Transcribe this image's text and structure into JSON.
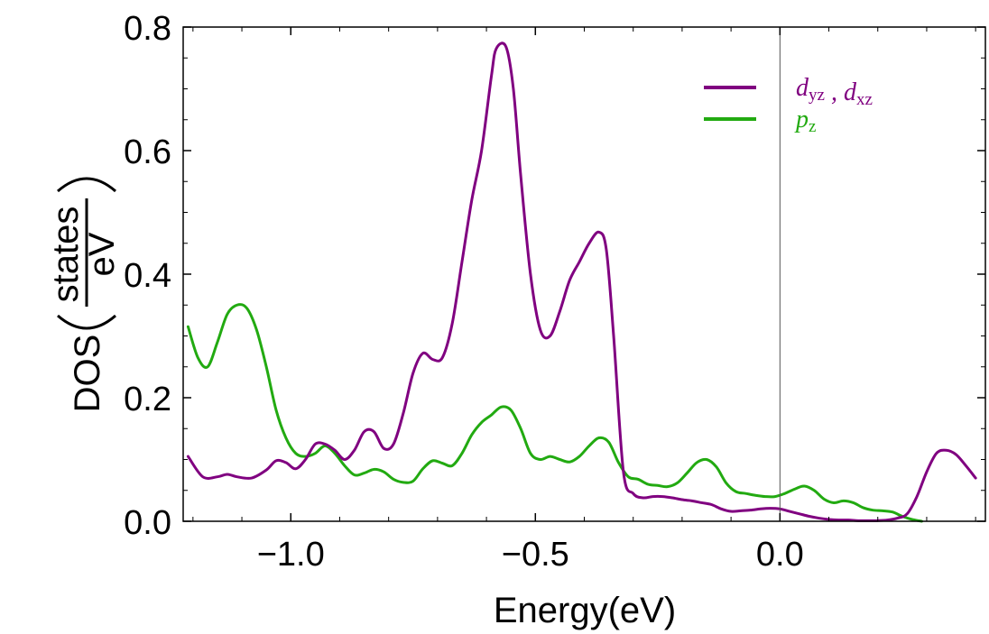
{
  "chart_data": {
    "type": "line",
    "title": "",
    "xlabel": "Energy(eV)",
    "ylabel": {
      "prefix": "DOS",
      "fraction_numerator": "states",
      "fraction_denominator": "eV"
    },
    "xlim": [
      -1.22,
      0.42
    ],
    "ylim": [
      0.0,
      0.8
    ],
    "x_ticks": [
      -1.0,
      -0.5,
      0.0
    ],
    "x_tick_labels": [
      "−1.0",
      "−0.5",
      "0.0"
    ],
    "y_ticks": [
      0.0,
      0.2,
      0.4,
      0.6,
      0.8
    ],
    "y_tick_labels": [
      "0.0",
      "0.2",
      "0.4",
      "0.6",
      "0.8"
    ],
    "reference_line_x": 0.0,
    "legend_position": "top-right",
    "series": [
      {
        "name": "d_yz , d_xz",
        "legend_parts": [
          {
            "main": "d",
            "sub": "yz"
          },
          {
            "main": " , ",
            "sub": ""
          },
          {
            "main": "d",
            "sub": "xz"
          }
        ],
        "color": "#800080",
        "x": [
          -1.21,
          -1.18,
          -1.15,
          -1.13,
          -1.11,
          -1.08,
          -1.05,
          -1.03,
          -1.01,
          -0.99,
          -0.97,
          -0.95,
          -0.93,
          -0.91,
          -0.89,
          -0.87,
          -0.85,
          -0.83,
          -0.81,
          -0.79,
          -0.77,
          -0.75,
          -0.73,
          -0.71,
          -0.69,
          -0.67,
          -0.65,
          -0.63,
          -0.61,
          -0.59,
          -0.58,
          -0.56,
          -0.545,
          -0.53,
          -0.51,
          -0.49,
          -0.47,
          -0.45,
          -0.43,
          -0.41,
          -0.39,
          -0.37,
          -0.355,
          -0.34,
          -0.32,
          -0.3,
          -0.28,
          -0.26,
          -0.24,
          -0.22,
          -0.2,
          -0.18,
          -0.16,
          -0.14,
          -0.12,
          -0.1,
          -0.08,
          -0.06,
          -0.04,
          -0.02,
          0.0,
          0.02,
          0.04,
          0.06,
          0.08,
          0.1,
          0.12,
          0.14,
          0.16,
          0.18,
          0.2,
          0.22,
          0.24,
          0.26,
          0.28,
          0.3,
          0.32,
          0.34,
          0.36,
          0.38,
          0.4
        ],
        "values": [
          0.105,
          0.072,
          0.072,
          0.076,
          0.072,
          0.07,
          0.083,
          0.098,
          0.095,
          0.085,
          0.1,
          0.125,
          0.125,
          0.115,
          0.1,
          0.115,
          0.145,
          0.145,
          0.118,
          0.125,
          0.175,
          0.24,
          0.272,
          0.262,
          0.265,
          0.32,
          0.42,
          0.52,
          0.6,
          0.72,
          0.765,
          0.768,
          0.7,
          0.56,
          0.4,
          0.31,
          0.3,
          0.34,
          0.39,
          0.42,
          0.45,
          0.468,
          0.44,
          0.3,
          0.08,
          0.045,
          0.038,
          0.04,
          0.04,
          0.038,
          0.035,
          0.033,
          0.03,
          0.027,
          0.02,
          0.016,
          0.017,
          0.018,
          0.02,
          0.021,
          0.02,
          0.016,
          0.012,
          0.008,
          0.005,
          0.003,
          0.002,
          0.002,
          0.001,
          0.001,
          0.001,
          0.002,
          0.005,
          0.012,
          0.04,
          0.08,
          0.11,
          0.115,
          0.108,
          0.09,
          0.07
        ]
      },
      {
        "name": "p_z",
        "legend_parts": [
          {
            "main": "p",
            "sub": "z"
          }
        ],
        "color": "#22aa11",
        "x": [
          -1.21,
          -1.19,
          -1.17,
          -1.15,
          -1.13,
          -1.11,
          -1.09,
          -1.07,
          -1.05,
          -1.03,
          -1.01,
          -0.99,
          -0.97,
          -0.95,
          -0.93,
          -0.91,
          -0.89,
          -0.87,
          -0.85,
          -0.83,
          -0.81,
          -0.79,
          -0.77,
          -0.75,
          -0.73,
          -0.71,
          -0.69,
          -0.67,
          -0.65,
          -0.63,
          -0.61,
          -0.59,
          -0.57,
          -0.55,
          -0.53,
          -0.51,
          -0.49,
          -0.47,
          -0.45,
          -0.43,
          -0.41,
          -0.39,
          -0.37,
          -0.35,
          -0.33,
          -0.31,
          -0.29,
          -0.27,
          -0.25,
          -0.23,
          -0.21,
          -0.19,
          -0.17,
          -0.15,
          -0.13,
          -0.11,
          -0.09,
          -0.07,
          -0.05,
          -0.03,
          -0.01,
          0.01,
          0.03,
          0.05,
          0.07,
          0.09,
          0.11,
          0.13,
          0.15,
          0.17,
          0.19,
          0.21,
          0.23,
          0.25,
          0.27,
          0.29
        ],
        "values": [
          0.315,
          0.265,
          0.25,
          0.29,
          0.335,
          0.35,
          0.345,
          0.31,
          0.25,
          0.18,
          0.135,
          0.11,
          0.105,
          0.11,
          0.122,
          0.11,
          0.09,
          0.075,
          0.078,
          0.084,
          0.08,
          0.068,
          0.063,
          0.065,
          0.085,
          0.098,
          0.094,
          0.09,
          0.11,
          0.14,
          0.16,
          0.172,
          0.185,
          0.18,
          0.15,
          0.11,
          0.1,
          0.105,
          0.1,
          0.096,
          0.105,
          0.122,
          0.135,
          0.128,
          0.095,
          0.072,
          0.068,
          0.06,
          0.058,
          0.056,
          0.062,
          0.078,
          0.095,
          0.1,
          0.088,
          0.062,
          0.048,
          0.045,
          0.042,
          0.04,
          0.04,
          0.045,
          0.052,
          0.057,
          0.05,
          0.036,
          0.03,
          0.033,
          0.03,
          0.022,
          0.018,
          0.017,
          0.015,
          0.008,
          0.003,
          0.0
        ]
      }
    ]
  }
}
